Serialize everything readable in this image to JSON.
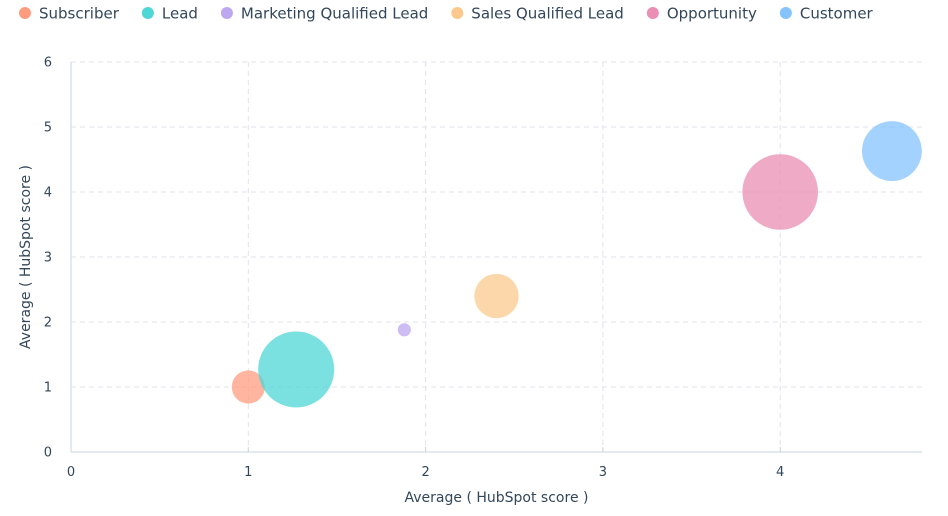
{
  "chart_data": {
    "type": "scatter",
    "subtype": "bubble",
    "xlabel": "Average ( HubSpot score )",
    "ylabel": "Average ( HubSpot score )",
    "xlim": [
      0,
      4.8
    ],
    "ylim": [
      0,
      6
    ],
    "xticks": [
      "0",
      "1",
      "2",
      "3",
      "4"
    ],
    "yticks": [
      "0",
      "1",
      "2",
      "3",
      "4",
      "5",
      "6"
    ],
    "grid": true,
    "legend_position": "top-left",
    "series": [
      {
        "name": "Subscriber",
        "color": "#ff9c7f",
        "x": 1.0,
        "y": 1.0,
        "size": 0.19
      },
      {
        "name": "Lead",
        "color": "#4fd6d6",
        "x": 1.27,
        "y": 1.27,
        "size": 1.0
      },
      {
        "name": "Marketing Qualified Lead",
        "color": "#bda7ef",
        "x": 1.88,
        "y": 1.88,
        "size": 0.03
      },
      {
        "name": "Sales Qualified Lead",
        "color": "#fbc98e",
        "x": 2.4,
        "y": 2.4,
        "size": 0.34
      },
      {
        "name": "Opportunity",
        "color": "#ea8fb3",
        "x": 4.0,
        "y": 4.0,
        "size": 0.99
      },
      {
        "name": "Customer",
        "color": "#85c3fd",
        "x": 4.63,
        "y": 4.63,
        "size": 0.62
      }
    ]
  }
}
